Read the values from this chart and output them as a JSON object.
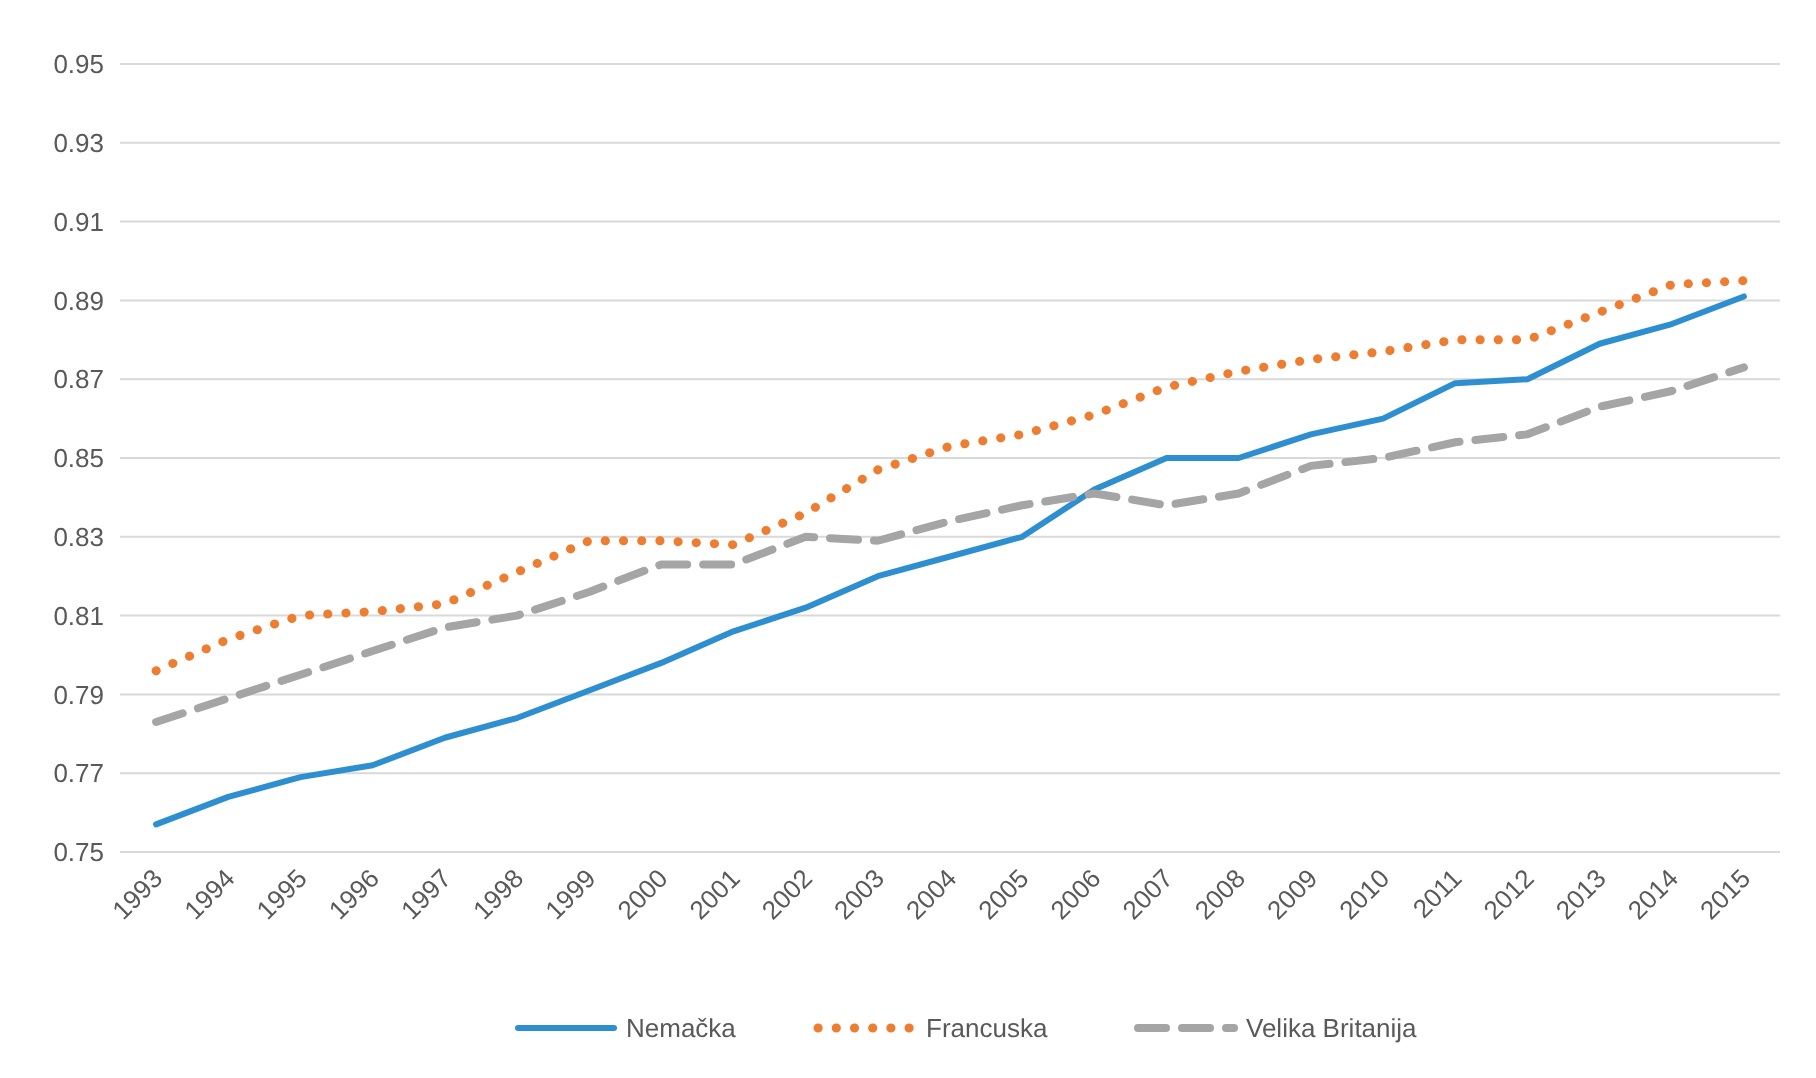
{
  "chart_data": {
    "type": "line",
    "categories": [
      "1993",
      "1994",
      "1995",
      "1996",
      "1997",
      "1998",
      "1999",
      "2000",
      "2001",
      "2002",
      "2003",
      "2004",
      "2005",
      "2006",
      "2007",
      "2008",
      "2009",
      "2010",
      "2011",
      "2012",
      "2013",
      "2014",
      "2015"
    ],
    "series": [
      {
        "name": "Nemačka",
        "color": "#2e8fd0",
        "line_style": "solid",
        "values": [
          0.757,
          0.764,
          0.769,
          0.772,
          0.779,
          0.784,
          0.791,
          0.798,
          0.806,
          0.812,
          0.82,
          0.825,
          0.83,
          0.842,
          0.85,
          0.85,
          0.856,
          0.86,
          0.869,
          0.87,
          0.879,
          0.884,
          0.891
        ]
      },
      {
        "name": "Francuska",
        "color": "#ed7d31",
        "line_style": "dotted",
        "values": [
          0.796,
          0.804,
          0.81,
          0.811,
          0.813,
          0.821,
          0.829,
          0.829,
          0.828,
          0.836,
          0.847,
          0.853,
          0.856,
          0.861,
          0.868,
          0.872,
          0.875,
          0.877,
          0.88,
          0.88,
          0.887,
          0.894,
          0.895
        ]
      },
      {
        "name": "Velika Britanija",
        "color": "#a5a5a5",
        "line_style": "dashed",
        "values": [
          0.783,
          0.789,
          0.795,
          0.801,
          0.807,
          0.81,
          0.816,
          0.823,
          0.823,
          0.83,
          0.829,
          0.834,
          0.838,
          0.841,
          0.838,
          0.841,
          0.848,
          0.85,
          0.854,
          0.856,
          0.863,
          0.867,
          0.873
        ]
      }
    ],
    "ylim": [
      0.75,
      0.95
    ],
    "yticks": [
      0.75,
      0.77,
      0.79,
      0.81,
      0.83,
      0.85,
      0.87,
      0.89,
      0.91,
      0.93,
      0.95
    ],
    "grid": "y",
    "legend": "bottom"
  }
}
